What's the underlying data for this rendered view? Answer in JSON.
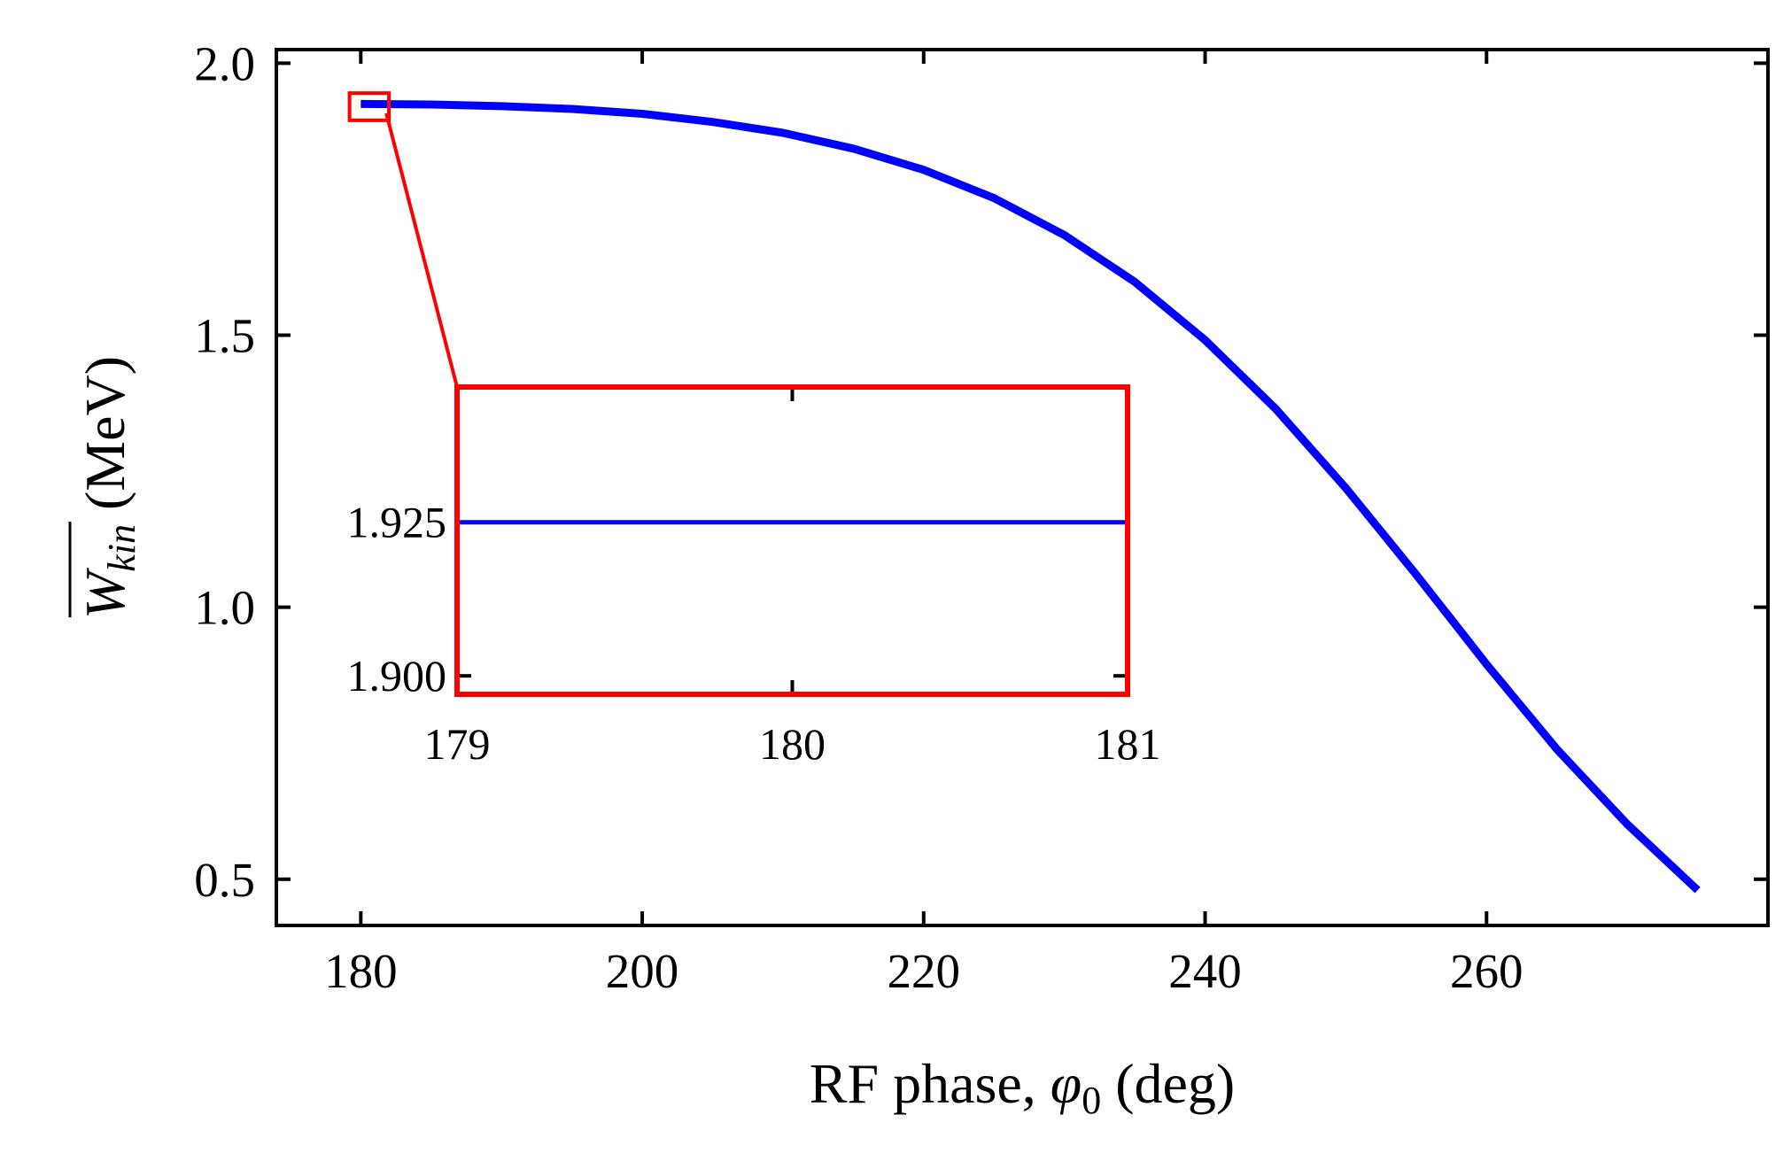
{
  "chart_data": {
    "type": "line",
    "title": "",
    "xlabel": "RF phase, φ0 (deg)",
    "xlabel_parts": {
      "main": "RF phase, ",
      "symbol": "φ",
      "sub": "0",
      "tail": " (deg)"
    },
    "ylabel": "W_kin (MeV)",
    "ylabel_parts": {
      "symbol": "W",
      "sub": "kin",
      "tail": " (MeV)"
    },
    "xlim": [
      174,
      280
    ],
    "ylim": [
      0.415,
      2.025
    ],
    "xticks": [
      180,
      200,
      220,
      240,
      260
    ],
    "xtick_labels": [
      "180",
      "200",
      "220",
      "240",
      "260"
    ],
    "yticks": [
      0.5,
      1.0,
      1.5,
      2.0
    ],
    "ytick_labels": [
      "0.5",
      "1.0",
      "1.5",
      "2.0"
    ],
    "series": [
      {
        "name": "W_kin",
        "color": "#0000ff",
        "x": [
          180,
          185,
          190,
          195,
          200,
          205,
          210,
          215,
          220,
          225,
          230,
          235,
          240,
          245,
          250,
          255,
          260,
          265,
          270,
          275
        ],
        "y": [
          1.925,
          1.924,
          1.921,
          1.916,
          1.907,
          1.892,
          1.872,
          1.843,
          1.804,
          1.752,
          1.684,
          1.598,
          1.491,
          1.365,
          1.219,
          1.06,
          0.895,
          0.739,
          0.601,
          0.48
        ]
      }
    ],
    "zoom_box": {
      "x": [
        179.2,
        182.0
      ],
      "y": [
        1.895,
        1.945
      ]
    },
    "inset": {
      "xlim": [
        179,
        181
      ],
      "ylim": [
        1.897,
        1.947
      ],
      "xticks": [
        179,
        180,
        181
      ],
      "xtick_labels": [
        "179",
        "180",
        "181"
      ],
      "yticks": [
        1.9,
        1.925
      ],
      "ytick_labels": [
        "1.900",
        "1.925"
      ],
      "series": [
        {
          "x": [
            179,
            181
          ],
          "y": [
            1.925,
            1.925
          ],
          "color": "#0000ff"
        }
      ],
      "frame_color": "#ff0000"
    },
    "grid": false,
    "legend": "none"
  }
}
